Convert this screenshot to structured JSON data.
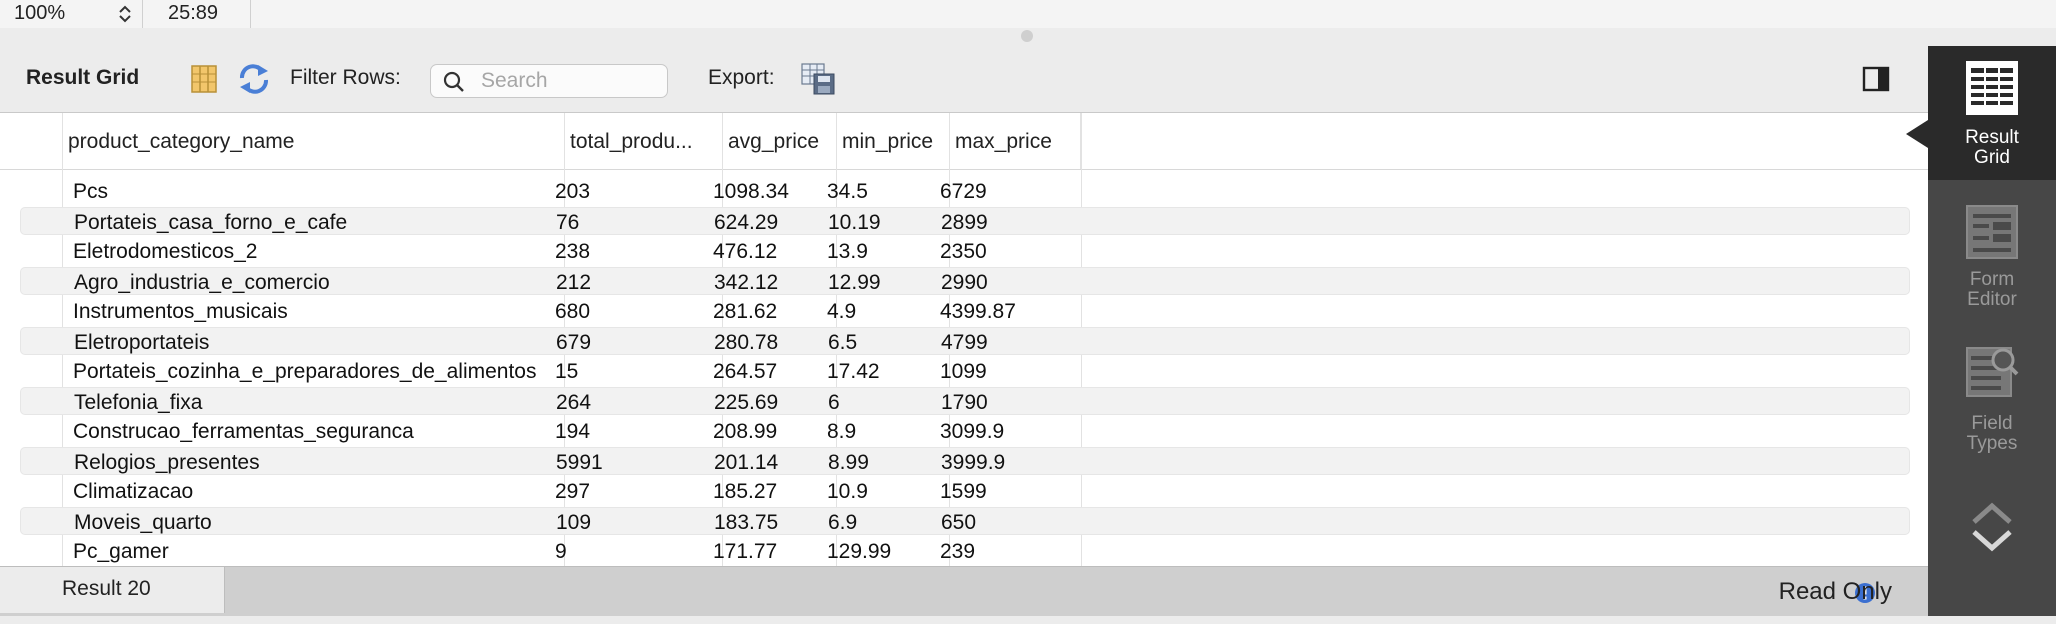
{
  "topbar": {
    "zoom": "100%",
    "time": "25:89"
  },
  "toolbar": {
    "title": "Result Grid",
    "filter_label": "Filter Rows:",
    "search_placeholder": "Search",
    "export_label": "Export:"
  },
  "grid": {
    "columns": [
      "product_category_name",
      "total_produ...",
      "avg_price",
      "min_price",
      "max_price"
    ],
    "rows": [
      [
        "Pcs",
        "203",
        "1098.34",
        "34.5",
        "6729"
      ],
      [
        "Portateis_casa_forno_e_cafe",
        "76",
        "624.29",
        "10.19",
        "2899"
      ],
      [
        "Eletrodomesticos_2",
        "238",
        "476.12",
        "13.9",
        "2350"
      ],
      [
        "Agro_industria_e_comercio",
        "212",
        "342.12",
        "12.99",
        "2990"
      ],
      [
        "Instrumentos_musicais",
        "680",
        "281.62",
        "4.9",
        "4399.87"
      ],
      [
        "Eletroportateis",
        "679",
        "280.78",
        "6.5",
        "4799"
      ],
      [
        "Portateis_cozinha_e_preparadores_de_alimentos",
        "15",
        "264.57",
        "17.42",
        "1099"
      ],
      [
        "Telefonia_fixa",
        "264",
        "225.69",
        "6",
        "1790"
      ],
      [
        "Construcao_ferramentas_seguranca",
        "194",
        "208.99",
        "8.9",
        "3099.9"
      ],
      [
        "Relogios_presentes",
        "5991",
        "201.14",
        "8.99",
        "3999.9"
      ],
      [
        "Climatizacao",
        "297",
        "185.27",
        "10.9",
        "1599"
      ],
      [
        "Moveis_quarto",
        "109",
        "183.75",
        "6.9",
        "650"
      ],
      [
        "Pc_gamer",
        "9",
        "171.77",
        "129.99",
        "239"
      ]
    ]
  },
  "bottombar": {
    "result_tab": "Result 20",
    "status": "Read Only"
  },
  "side_panel": {
    "items": [
      {
        "line1": "Result",
        "line2": "Grid",
        "active": true
      },
      {
        "line1": "Form",
        "line2": "Editor",
        "active": false
      },
      {
        "line1": "Field",
        "line2": "Types",
        "active": false
      }
    ]
  },
  "colors": {
    "side_active": "#2a2a2a",
    "side_bg": "#474747",
    "info_blue": "#3b6fd0"
  }
}
